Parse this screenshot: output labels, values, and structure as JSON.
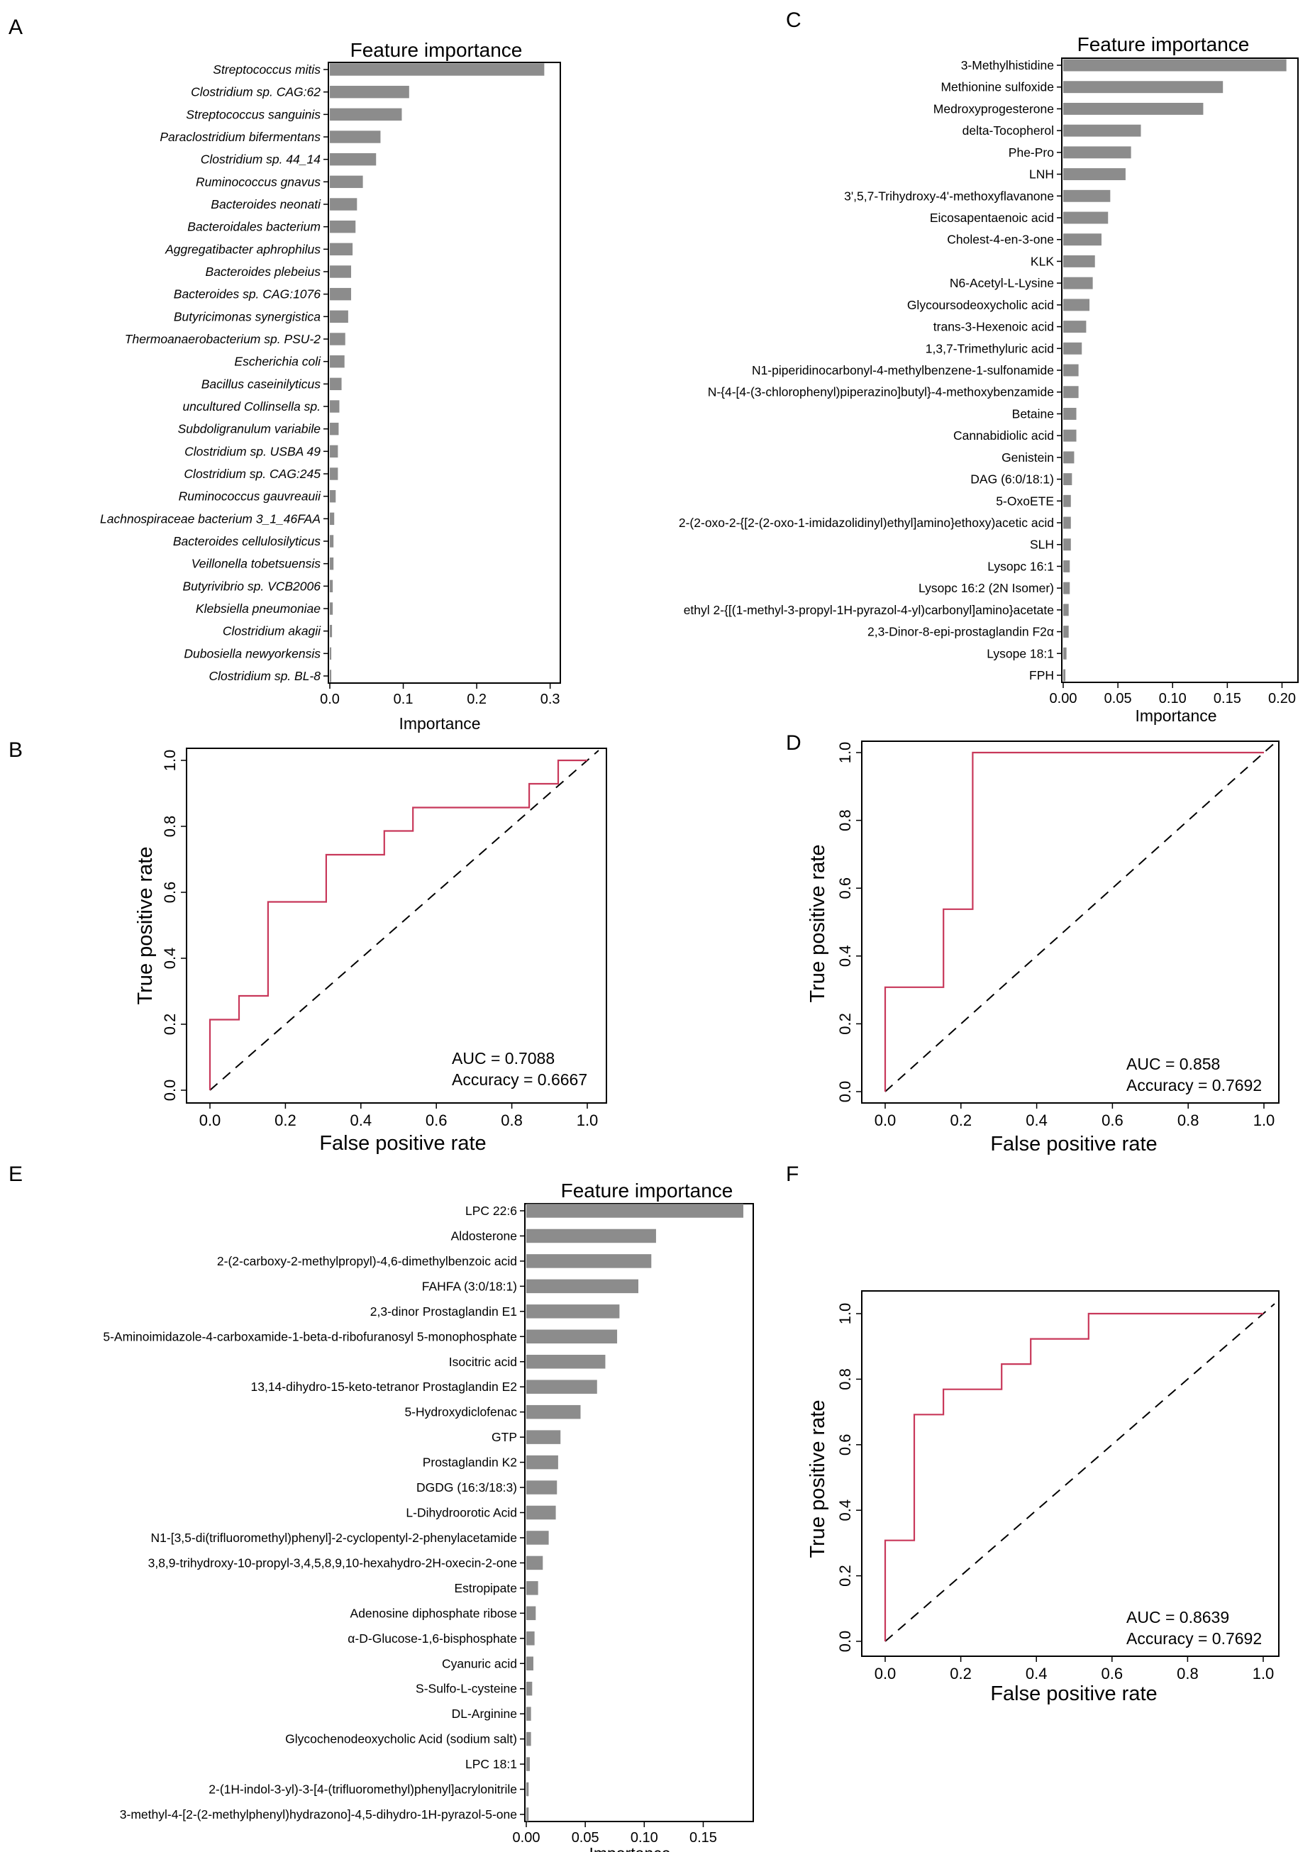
{
  "panels": [
    "A",
    "B",
    "C",
    "D",
    "E",
    "F"
  ],
  "colors": {
    "bar": "#8c8c8c",
    "roc": "#c8385a",
    "axis": "#000000",
    "diag": "#000000"
  },
  "chart_data": [
    {
      "id": "A",
      "type": "bar",
      "orientation": "horizontal",
      "title": "Feature importance",
      "xlabel": "Importance",
      "italic_labels": true,
      "xlim": [
        0,
        0.31
      ],
      "xticks": [
        0.0,
        0.1,
        0.2,
        0.3
      ],
      "xtick_labels": [
        "0.0",
        "0.1",
        "0.2",
        "0.3"
      ],
      "categories": [
        "Streptococcus mitis",
        "Clostridium sp. CAG:62",
        "Streptococcus sanguinis",
        "Paraclostridium bifermentans",
        "Clostridium sp. 44_14",
        "Ruminococcus gnavus",
        "Bacteroides neonati",
        "Bacteroidales bacterium",
        "Aggregatibacter aphrophilus",
        "Bacteroides plebeius",
        "Bacteroides sp. CAG:1076",
        "Butyricimonas synergistica",
        "Thermoanaerobacterium sp. PSU-2",
        "Escherichia coli",
        "Bacillus caseinilyticus",
        "uncultured Collinsella sp.",
        "Subdoligranulum variabile",
        "Clostridium sp. USBA 49",
        "Clostridium sp. CAG:245",
        "Ruminococcus gauvreauii",
        "Lachnospiraceae bacterium 3_1_46FAA",
        "Bacteroides cellulosilyticus",
        "Veillonella tobetsuensis",
        "Butyrivibrio sp. VCB2006",
        "Klebsiella pneumoniae",
        "Clostridium akagii",
        "Dubosiella newyorkensis",
        "Clostridium sp. BL-8"
      ],
      "values": [
        0.292,
        0.108,
        0.098,
        0.069,
        0.063,
        0.045,
        0.037,
        0.035,
        0.031,
        0.029,
        0.029,
        0.025,
        0.021,
        0.02,
        0.016,
        0.013,
        0.012,
        0.011,
        0.011,
        0.008,
        0.006,
        0.005,
        0.005,
        0.004,
        0.004,
        0.003,
        0.002,
        0.002
      ]
    },
    {
      "id": "B",
      "type": "line",
      "subtype": "roc",
      "xlabel": "False positive rate",
      "ylabel": "True positive rate",
      "xlim": [
        0,
        1
      ],
      "ylim": [
        0,
        1
      ],
      "xticks": [
        0.0,
        0.2,
        0.4,
        0.6,
        0.8,
        1.0
      ],
      "yticks": [
        0.0,
        0.2,
        0.4,
        0.6,
        0.8,
        1.0
      ],
      "tick_labels": [
        "0.0",
        "0.2",
        "0.4",
        "0.6",
        "0.8",
        "1.0"
      ],
      "x": [
        0,
        0,
        0.077,
        0.077,
        0.154,
        0.154,
        0.308,
        0.308,
        0.462,
        0.462,
        0.538,
        0.538,
        0.846,
        0.846,
        0.923,
        0.923,
        1.0
      ],
      "y": [
        0,
        0.214,
        0.214,
        0.286,
        0.286,
        0.571,
        0.571,
        0.714,
        0.714,
        0.786,
        0.786,
        0.857,
        0.857,
        0.929,
        0.929,
        1.0,
        1.0
      ],
      "auc_label": "AUC =  0.7088",
      "accuracy_label": "Accuracy = 0.6667"
    },
    {
      "id": "C",
      "type": "bar",
      "orientation": "horizontal",
      "title": "Feature importance",
      "xlabel": "Importance",
      "italic_labels": false,
      "xlim": [
        0,
        0.212
      ],
      "xticks": [
        0.0,
        0.05,
        0.1,
        0.15,
        0.2
      ],
      "xtick_labels": [
        "0.00",
        "0.05",
        "0.10",
        "0.15",
        "0.20"
      ],
      "categories": [
        "3-Methylhistidine",
        "Methionine sulfoxide",
        "Medroxyprogesterone",
        "delta-Tocopherol",
        "Phe-Pro",
        "LNH",
        "3',5,7-Trihydroxy-4'-methoxyflavanone",
        "Eicosapentaenoic acid",
        "Cholest-4-en-3-one",
        "KLK",
        "N6-Acetyl-L-Lysine",
        "Glycoursodeoxycholic acid",
        "trans-3-Hexenoic acid",
        "1,3,7-Trimethyluric acid",
        "N1-piperidinocarbonyl-4-methylbenzene-1-sulfonamide",
        "N-{4-[4-(3-chlorophenyl)piperazino]butyl}-4-methoxybenzamide",
        "Betaine",
        "Cannabidiolic acid",
        "Genistein",
        "DAG (6:0/18:1)",
        "5-OxoETE",
        "2-(2-oxo-2-{[2-(2-oxo-1-imidazolidinyl)ethyl]amino}ethoxy)acetic acid",
        "SLH",
        "Lysopc 16:1",
        "Lysopc 16:2 (2N Isomer)",
        "ethyl 2-{[(1-methyl-3-propyl-1H-pyrazol-4-yl)carbonyl]amino}acetate",
        "2,3-Dinor-8-epi-prostaglandin F2α",
        "Lysope 18:1",
        "FPH"
      ],
      "values": [
        0.204,
        0.146,
        0.128,
        0.071,
        0.062,
        0.057,
        0.043,
        0.041,
        0.035,
        0.029,
        0.027,
        0.024,
        0.021,
        0.017,
        0.014,
        0.014,
        0.012,
        0.012,
        0.01,
        0.008,
        0.007,
        0.007,
        0.007,
        0.006,
        0.006,
        0.005,
        0.005,
        0.003,
        0.002
      ]
    },
    {
      "id": "D",
      "type": "line",
      "subtype": "roc",
      "xlabel": "False positive rate",
      "ylabel": "True positive rate",
      "xlim": [
        0,
        1
      ],
      "ylim": [
        0,
        1
      ],
      "xticks": [
        0.0,
        0.2,
        0.4,
        0.6,
        0.8,
        1.0
      ],
      "yticks": [
        0.0,
        0.2,
        0.4,
        0.6,
        0.8,
        1.0
      ],
      "tick_labels": [
        "0.0",
        "0.2",
        "0.4",
        "0.6",
        "0.8",
        "1.0"
      ],
      "x": [
        0,
        0,
        0.154,
        0.154,
        0.231,
        0.231,
        1.0
      ],
      "y": [
        0,
        0.308,
        0.308,
        0.538,
        0.538,
        1.0,
        1.0
      ],
      "auc_label": "AUC =  0.858",
      "accuracy_label": "Accuracy = 0.7692"
    },
    {
      "id": "E",
      "type": "bar",
      "orientation": "horizontal",
      "title": "Feature importance",
      "xlabel": "Importance",
      "italic_labels": false,
      "xlim": [
        0,
        0.19
      ],
      "xticks": [
        0.0,
        0.05,
        0.1,
        0.15
      ],
      "xtick_labels": [
        "0.00",
        "0.05",
        "0.10",
        "0.15"
      ],
      "categories": [
        "LPC 22:6",
        "Aldosterone",
        "2-(2-carboxy-2-methylpropyl)-4,6-dimethylbenzoic acid",
        "FAHFA (3:0/18:1)",
        "2,3-dinor Prostaglandin E1",
        "5-Aminoimidazole-4-carboxamide-1-beta-d-ribofuranosyl 5-monophosphate",
        "Isocitric acid",
        "13,14-dihydro-15-keto-tetranor Prostaglandin E2",
        "5-Hydroxydiclofenac",
        "GTP",
        "Prostaglandin K2",
        "DGDG (16:3/18:3)",
        "L-Dihydroorotic Acid",
        "N1-[3,5-di(trifluoromethyl)phenyl]-2-cyclopentyl-2-phenylacetamide",
        "3,8,9-trihydroxy-10-propyl-3,4,5,8,9,10-hexahydro-2H-oxecin-2-one",
        "Estropipate",
        "Adenosine diphosphate ribose",
        "α-D-Glucose-1,6-bisphosphate",
        "Cyanuric acid",
        "S-Sulfo-L-cysteine",
        "DL-Arginine",
        "Glycochenodeoxycholic Acid (sodium salt)",
        "LPC 18:1",
        "2-(1H-indol-3-yl)-3-[4-(trifluoromethyl)phenyl]acrylonitrile",
        "3-methyl-4-[2-(2-methylphenyl)hydrazono]-4,5-dihydro-1H-pyrazol-5-one"
      ],
      "values": [
        0.184,
        0.11,
        0.106,
        0.095,
        0.079,
        0.077,
        0.067,
        0.06,
        0.046,
        0.029,
        0.027,
        0.026,
        0.025,
        0.019,
        0.014,
        0.01,
        0.008,
        0.007,
        0.006,
        0.005,
        0.004,
        0.004,
        0.003,
        0.002,
        0.002
      ]
    },
    {
      "id": "F",
      "type": "line",
      "subtype": "roc",
      "xlabel": "False positive rate",
      "ylabel": "True positive rate",
      "xlim": [
        0,
        1
      ],
      "ylim": [
        0,
        1
      ],
      "xticks": [
        0.0,
        0.2,
        0.4,
        0.6,
        0.8,
        1.0
      ],
      "yticks": [
        0.0,
        0.2,
        0.4,
        0.6,
        0.8,
        1.0
      ],
      "tick_labels": [
        "0.0",
        "0.2",
        "0.4",
        "0.6",
        "0.8",
        "1.0"
      ],
      "x": [
        0,
        0,
        0.077,
        0.077,
        0.154,
        0.154,
        0.308,
        0.308,
        0.385,
        0.385,
        0.538,
        0.538,
        1.0
      ],
      "y": [
        0,
        0.308,
        0.308,
        0.692,
        0.692,
        0.769,
        0.769,
        0.846,
        0.846,
        0.923,
        0.923,
        1.0,
        1.0
      ],
      "auc_label": "AUC =  0.8639",
      "accuracy_label": "Accuracy = 0.7692"
    }
  ]
}
